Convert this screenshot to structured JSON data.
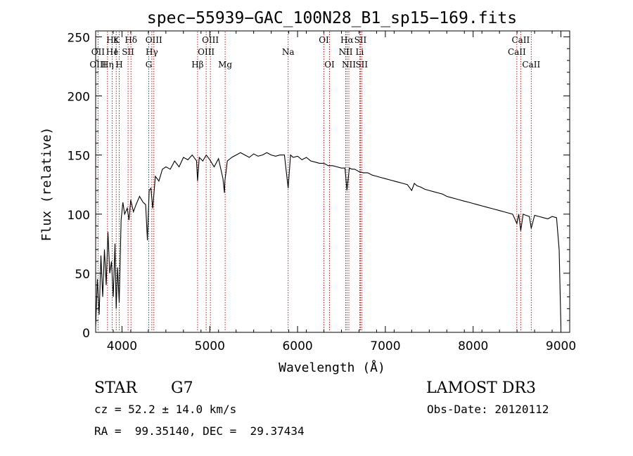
{
  "chart_data": {
    "type": "line",
    "title": "spec−55939−GAC_100N28_B1_sp15−169.fits",
    "xlabel": "Wavelength (Å)",
    "ylabel": "Flux (relative)",
    "xlim": [
      3700,
      9100
    ],
    "ylim": [
      0,
      255
    ],
    "xticks": [
      4000,
      5000,
      6000,
      7000,
      8000,
      9000
    ],
    "yticks": [
      0,
      50,
      100,
      150,
      200,
      250
    ],
    "series": [
      {
        "name": "spectrum",
        "x": [
          3700,
          3720,
          3740,
          3760,
          3780,
          3800,
          3820,
          3840,
          3860,
          3880,
          3900,
          3920,
          3934,
          3950,
          3968,
          3990,
          4010,
          4030,
          4060,
          4080,
          4100,
          4130,
          4160,
          4200,
          4240,
          4270,
          4290,
          4300,
          4310,
          4330,
          4350,
          4380,
          4420,
          4460,
          4500,
          4550,
          4600,
          4650,
          4700,
          4750,
          4800,
          4850,
          4861,
          4880,
          4920,
          4960,
          5000,
          5050,
          5100,
          5150,
          5167,
          5172,
          5184,
          5200,
          5250,
          5300,
          5350,
          5400,
          5450,
          5500,
          5550,
          5600,
          5650,
          5700,
          5750,
          5800,
          5850,
          5893,
          5920,
          5950,
          6000,
          6050,
          6100,
          6150,
          6200,
          6250,
          6300,
          6350,
          6400,
          6450,
          6500,
          6540,
          6563,
          6590,
          6620,
          6650,
          6700,
          6750,
          6800,
          6850,
          6900,
          6950,
          7000,
          7050,
          7100,
          7150,
          7200,
          7250,
          7300,
          7330,
          7360,
          7400,
          7450,
          7500,
          7550,
          7600,
          7650,
          7700,
          7750,
          7800,
          7850,
          7900,
          7950,
          8000,
          8050,
          8100,
          8150,
          8200,
          8250,
          8300,
          8350,
          8400,
          8450,
          8498,
          8520,
          8542,
          8570,
          8600,
          8640,
          8662,
          8700,
          8750,
          8800,
          8850,
          8900,
          8950,
          8980,
          9000
        ],
        "values": [
          5,
          45,
          15,
          65,
          30,
          70,
          40,
          85,
          50,
          60,
          30,
          75,
          20,
          55,
          25,
          95,
          110,
          100,
          105,
          95,
          112,
          102,
          108,
          115,
          110,
          108,
          78,
          100,
          120,
          122,
          105,
          132,
          128,
          138,
          140,
          138,
          145,
          140,
          148,
          146,
          150,
          145,
          128,
          148,
          145,
          150,
          146,
          140,
          147,
          130,
          118,
          128,
          135,
          145,
          148,
          150,
          152,
          150,
          148,
          151,
          149,
          150,
          152,
          150,
          149,
          150,
          150,
          122,
          150,
          148,
          149,
          146,
          148,
          145,
          144,
          143,
          143,
          141,
          141,
          140,
          139,
          139,
          120,
          139,
          138,
          138,
          136,
          135,
          135,
          133,
          132,
          131,
          130,
          129,
          128,
          127,
          126,
          125,
          120,
          126,
          124,
          123,
          121,
          120,
          119,
          118,
          117,
          115,
          114,
          113,
          112,
          111,
          110,
          109,
          108,
          107,
          106,
          105,
          104,
          103,
          102,
          101,
          100,
          92,
          100,
          86,
          100,
          99,
          98,
          88,
          99,
          98,
          97,
          96,
          98,
          97,
          70,
          5
        ]
      }
    ],
    "lines": [
      {
        "label": "Hε",
        "x": 3889,
        "row": 1
      },
      {
        "label": "OII",
        "x": 3727,
        "row": 2
      },
      {
        "label": "OIII",
        "x": 3727,
        "row": 3
      },
      {
        "label": "Hη",
        "x": 3835,
        "row": 3
      },
      {
        "label": "K",
        "x": 3934,
        "row": 1
      },
      {
        "label": "He",
        "x": 3889,
        "row": 2
      },
      {
        "label": "I",
        "x": 3930,
        "row": 2
      },
      {
        "label": "H",
        "x": 3968,
        "row": 3
      },
      {
        "label": "SII",
        "x": 4069,
        "row": 2
      },
      {
        "label": "Hδ",
        "x": 4102,
        "row": 1
      },
      {
        "label": "OIII",
        "x": 4363,
        "row": 1
      },
      {
        "label": "Hγ",
        "x": 4340,
        "row": 2
      },
      {
        "label": "G",
        "x": 4305,
        "row": 3
      },
      {
        "label": "OIII",
        "x": 5007,
        "row": 1
      },
      {
        "label": "OIII",
        "x": 4959,
        "row": 2
      },
      {
        "label": "Hβ",
        "x": 4861,
        "row": 3
      },
      {
        "label": "Mg",
        "x": 5175,
        "row": 3
      },
      {
        "label": "Na",
        "x": 5893,
        "row": 2
      },
      {
        "label": "OI",
        "x": 6300,
        "row": 1
      },
      {
        "label": "OI",
        "x": 6364,
        "row": 3
      },
      {
        "label": "Hα",
        "x": 6563,
        "row": 1
      },
      {
        "label": "SII",
        "x": 6716,
        "row": 1
      },
      {
        "label": "NII",
        "x": 6548,
        "row": 2
      },
      {
        "label": "Li",
        "x": 6708,
        "row": 2
      },
      {
        "label": "NII",
        "x": 6584,
        "row": 3
      },
      {
        "label": "SII",
        "x": 6731,
        "row": 3
      },
      {
        "label": "CaII",
        "x": 8542,
        "row": 1
      },
      {
        "label": "CaII",
        "x": 8498,
        "row": 2
      },
      {
        "label": "CaII",
        "x": 8662,
        "row": 3
      }
    ]
  },
  "info": {
    "class_label": "STAR",
    "subclass": "G7",
    "survey": "LAMOST DR3",
    "cz": "cz = 52.2 ± 14.0 km/s",
    "obs_date": "Obs-Date: 20120112",
    "radec": "RA =  99.35140, DEC =  29.37434"
  }
}
